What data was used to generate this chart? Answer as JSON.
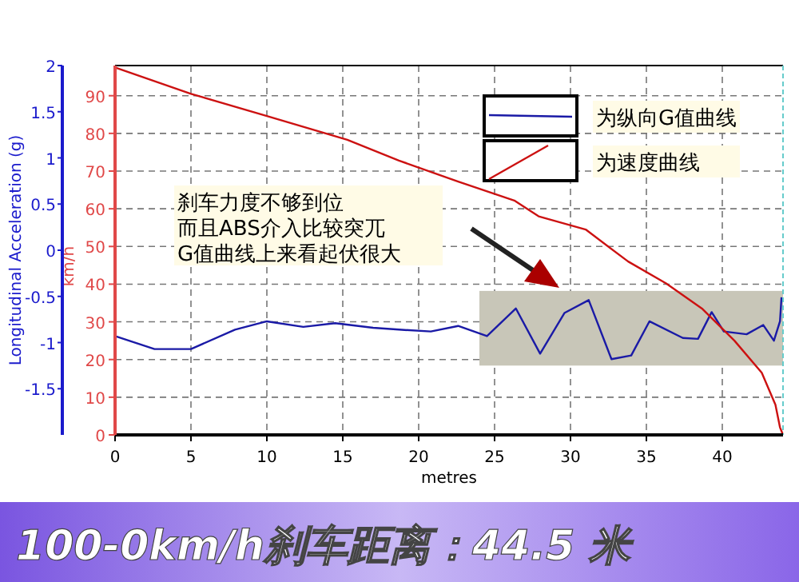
{
  "chart_data": {
    "type": "line",
    "xlabel": "metres",
    "ylabel": "Longitudinal Acceleration (g)",
    "y2label": "km/h",
    "xlim": [
      0,
      44
    ],
    "xticks": [
      0,
      5,
      10,
      15,
      20,
      25,
      30,
      35,
      40
    ],
    "ylim": [
      -2,
      2
    ],
    "yticks": [
      -1.5,
      -1,
      -0.5,
      0,
      0.5,
      1,
      1.5,
      2
    ],
    "y2lim": [
      0,
      98
    ],
    "y2ticks": [
      0,
      10,
      20,
      30,
      40,
      50,
      60,
      70,
      80,
      90
    ],
    "grid": true,
    "legend": "top right",
    "series": [
      {
        "name": "为纵向G值曲线",
        "color": "#1a1aa6",
        "axis": "y",
        "type": "line",
        "x": [
          0,
          2.6,
          5,
          7.9,
          10,
          12.4,
          14.5,
          17,
          18.7,
          20.8,
          22.6,
          24.5,
          26.4,
          28,
          29.6,
          31.2,
          32.7,
          34,
          35.2,
          37.4,
          38.4,
          39.3,
          40.1,
          41.6,
          42.7,
          43.4,
          43.8,
          43.9
        ],
        "values": [
          -0.93,
          -1.07,
          -1.07,
          -0.86,
          -0.77,
          -0.83,
          -0.79,
          -0.84,
          -0.86,
          -0.88,
          -0.82,
          -0.93,
          -0.63,
          -1.12,
          -0.68,
          -0.54,
          -1.18,
          -1.14,
          -0.77,
          -0.95,
          -0.96,
          -0.67,
          -0.88,
          -0.91,
          -0.81,
          -0.98,
          -0.77,
          -0.51
        ]
      },
      {
        "name": "为速度曲线",
        "color": "#cc1111",
        "axis": "y2",
        "type": "line",
        "x": [
          0,
          5,
          10,
          15.3,
          18.7,
          22.6,
          26.3,
          27.9,
          31,
          33.8,
          36.3,
          38.7,
          40.8,
          42.6,
          43.5,
          43.8,
          44
        ],
        "values": [
          97.5,
          90.5,
          84.6,
          78.3,
          72.8,
          67.2,
          62.2,
          58,
          54.5,
          46,
          40.2,
          33.4,
          25,
          16.5,
          8,
          2,
          0
        ]
      }
    ],
    "bands": [
      {
        "axis": "x",
        "from": 24,
        "to": 44,
        "color": "#c8c6b8"
      }
    ],
    "annotations": [
      "刹车力度不够到位",
      "而且ABS介入比较突兀",
      "G值曲线上来看起伏很大",
      "100-0km/h刹车距离：44.5 米"
    ]
  }
}
